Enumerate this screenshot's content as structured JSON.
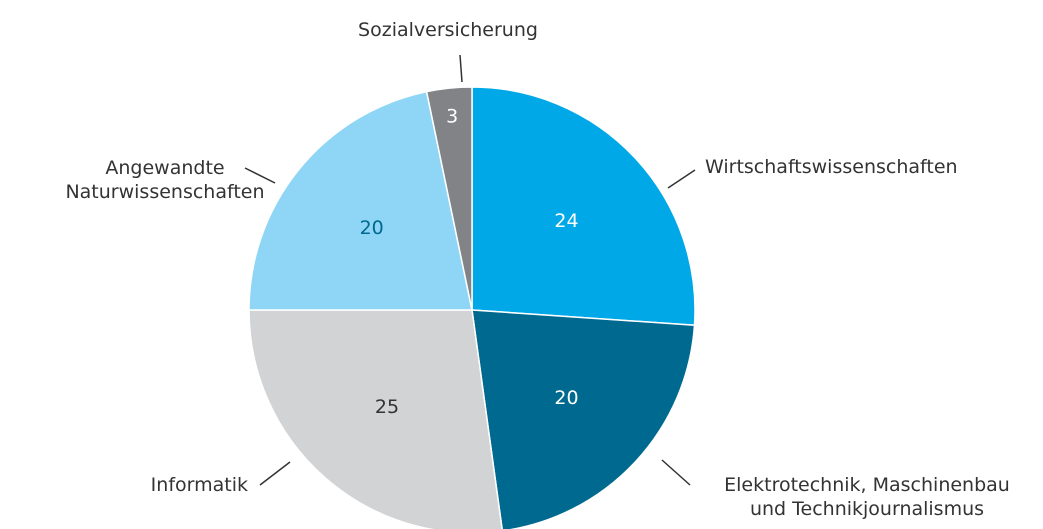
{
  "chart_data": {
    "type": "pie",
    "categories": [
      "Wirtschaftswissenschaften",
      "Elektrotechnik, Maschinenbau\nund Technikjournalismus",
      "Informatik",
      "Angewandte\nNaturwissenschaften",
      "Sozialversicherung"
    ],
    "values": [
      24,
      20,
      25,
      20,
      3
    ],
    "colors": [
      "#00a8e8",
      "#00698f",
      "#d2d3d5",
      "#8fd6f6",
      "#818386"
    ]
  }
}
